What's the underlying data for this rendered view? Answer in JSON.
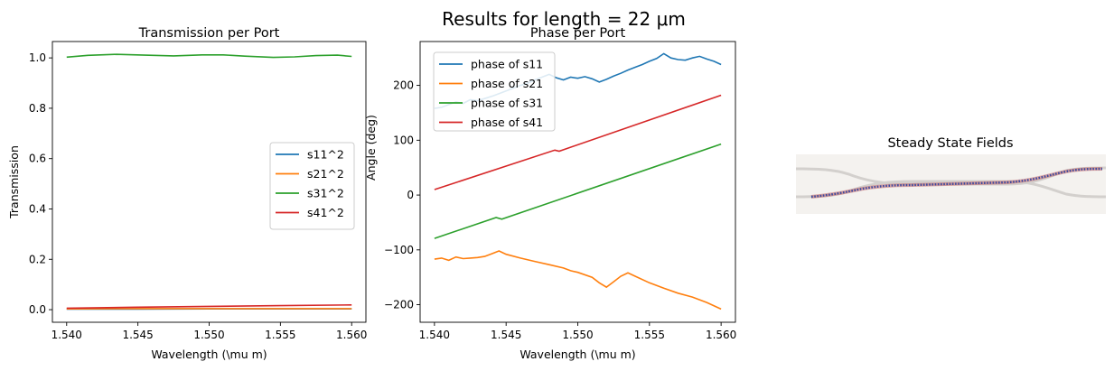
{
  "figure": {
    "suptitle": "Results for length = 22 μm"
  },
  "chart_data": [
    {
      "type": "line",
      "title": "Transmission per Port",
      "xlabel": "Wavelength (\\mu m)",
      "ylabel": "Transmission",
      "xlim": [
        1.539,
        1.561
      ],
      "ylim": [
        -0.05,
        1.065
      ],
      "xticks": [
        "1.540",
        "1.545",
        "1.550",
        "1.555",
        "1.560"
      ],
      "yticks": [
        "0.0",
        "0.2",
        "0.4",
        "0.6",
        "0.8",
        "1.0"
      ],
      "legend": "center-right",
      "grid": false,
      "series": [
        {
          "name": "s11^2",
          "color": "#1f77b4",
          "points": [
            [
              1.54,
              0.002
            ],
            [
              1.545,
              0.002
            ],
            [
              1.55,
              0.003
            ],
            [
              1.555,
              0.003
            ],
            [
              1.56,
              0.003
            ]
          ]
        },
        {
          "name": "s21^2",
          "color": "#ff7f0e",
          "points": [
            [
              1.54,
              0.003
            ],
            [
              1.545,
              0.004
            ],
            [
              1.55,
              0.004
            ],
            [
              1.555,
              0.004
            ],
            [
              1.56,
              0.004
            ]
          ]
        },
        {
          "name": "s31^2",
          "color": "#2ca02c",
          "points": [
            [
              1.54,
              1.003
            ],
            [
              1.5415,
              1.01
            ],
            [
              1.5435,
              1.014
            ],
            [
              1.5455,
              1.011
            ],
            [
              1.5475,
              1.008
            ],
            [
              1.5495,
              1.012
            ],
            [
              1.551,
              1.012
            ],
            [
              1.5525,
              1.007
            ],
            [
              1.5545,
              1.002
            ],
            [
              1.556,
              1.004
            ],
            [
              1.5575,
              1.009
            ],
            [
              1.559,
              1.011
            ],
            [
              1.56,
              1.006
            ]
          ]
        },
        {
          "name": "s41^2",
          "color": "#d62728",
          "points": [
            [
              1.54,
              0.006
            ],
            [
              1.545,
              0.01
            ],
            [
              1.55,
              0.013
            ],
            [
              1.555,
              0.016
            ],
            [
              1.56,
              0.019
            ]
          ]
        }
      ]
    },
    {
      "type": "line",
      "title": "Phase per Port",
      "xlabel": "Wavelength (\\mu m)",
      "ylabel": "Angle (deg)",
      "xlim": [
        1.539,
        1.561
      ],
      "ylim": [
        -232,
        280
      ],
      "xticks": [
        "1.540",
        "1.545",
        "1.550",
        "1.555",
        "1.560"
      ],
      "yticks": [
        "−200",
        "−100",
        "0",
        "100",
        "200"
      ],
      "legend": "top-left",
      "grid": false,
      "series": [
        {
          "name": "phase of s11",
          "color": "#1f77b4",
          "points": [
            [
              1.54,
              158
            ],
            [
              1.5405,
              160
            ],
            [
              1.541,
              165
            ],
            [
              1.5415,
              170
            ],
            [
              1.542,
              167
            ],
            [
              1.5425,
              174
            ],
            [
              1.543,
              172
            ],
            [
              1.5435,
              176
            ],
            [
              1.544,
              180
            ],
            [
              1.5445,
              185
            ],
            [
              1.545,
              190
            ],
            [
              1.5455,
              195
            ],
            [
              1.546,
              200
            ],
            [
              1.5465,
              204
            ],
            [
              1.547,
              210
            ],
            [
              1.5475,
              215
            ],
            [
              1.548,
              220
            ],
            [
              1.5485,
              214
            ],
            [
              1.549,
              210
            ],
            [
              1.5495,
              215
            ],
            [
              1.55,
              213
            ],
            [
              1.5505,
              216
            ],
            [
              1.551,
              212
            ],
            [
              1.5515,
              206
            ],
            [
              1.552,
              211
            ],
            [
              1.5525,
              217
            ],
            [
              1.553,
              222
            ],
            [
              1.5535,
              228
            ],
            [
              1.554,
              233
            ],
            [
              1.5545,
              238
            ],
            [
              1.555,
              244
            ],
            [
              1.5555,
              249
            ],
            [
              1.556,
              258
            ],
            [
              1.5565,
              250
            ],
            [
              1.557,
              247
            ],
            [
              1.5575,
              246
            ],
            [
              1.558,
              250
            ],
            [
              1.5585,
              253
            ],
            [
              1.559,
              248
            ],
            [
              1.5595,
              244
            ],
            [
              1.56,
              238
            ]
          ]
        },
        {
          "name": "phase of s21",
          "color": "#ff7f0e",
          "points": [
            [
              1.54,
              -117
            ],
            [
              1.5405,
              -115
            ],
            [
              1.541,
              -119
            ],
            [
              1.5415,
              -113
            ],
            [
              1.542,
              -116
            ],
            [
              1.5425,
              -115
            ],
            [
              1.543,
              -114
            ],
            [
              1.5435,
              -112
            ],
            [
              1.544,
              -107
            ],
            [
              1.5445,
              -102
            ],
            [
              1.545,
              -108
            ],
            [
              1.546,
              -115
            ],
            [
              1.547,
              -121
            ],
            [
              1.548,
              -127
            ],
            [
              1.549,
              -133
            ],
            [
              1.5495,
              -138
            ],
            [
              1.55,
              -141
            ],
            [
              1.551,
              -150
            ],
            [
              1.5515,
              -160
            ],
            [
              1.552,
              -168
            ],
            [
              1.5525,
              -158
            ],
            [
              1.553,
              -148
            ],
            [
              1.5535,
              -142
            ],
            [
              1.554,
              -148
            ],
            [
              1.555,
              -160
            ],
            [
              1.556,
              -170
            ],
            [
              1.557,
              -179
            ],
            [
              1.558,
              -186
            ],
            [
              1.559,
              -196
            ],
            [
              1.56,
              -208
            ]
          ]
        },
        {
          "name": "phase of s31",
          "color": "#2ca02c",
          "points": [
            [
              1.54,
              -79
            ],
            [
              1.5443,
              -41
            ],
            [
              1.5447,
              -44
            ],
            [
              1.56,
              93
            ]
          ]
        },
        {
          "name": "phase of s41",
          "color": "#d62728",
          "points": [
            [
              1.54,
              10
            ],
            [
              1.5484,
              82
            ],
            [
              1.5487,
              80
            ],
            [
              1.56,
              182
            ]
          ]
        }
      ]
    },
    {
      "type": "other",
      "title": "Steady State Fields"
    }
  ]
}
